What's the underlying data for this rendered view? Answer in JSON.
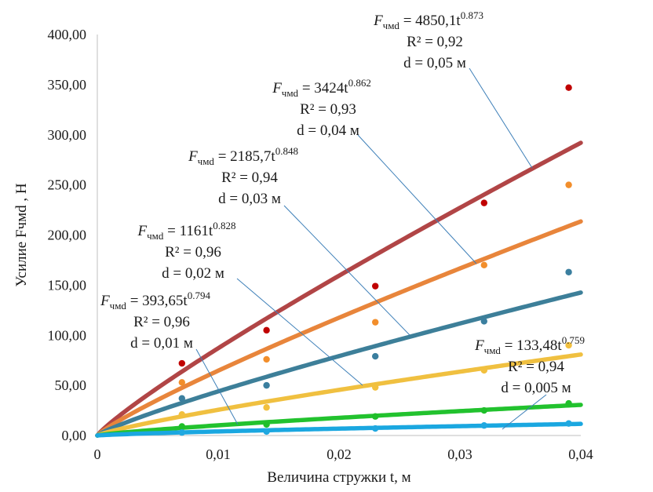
{
  "chart_data": {
    "type": "scatter",
    "xlabel": "Величина стружки t, м",
    "ylabel": "Усилие Fчмd , Н",
    "xlim": [
      0,
      0.04
    ],
    "ylim": [
      0,
      400
    ],
    "x_ticks": [
      "0",
      "0,01",
      "0,02",
      "0,03",
      "0,04"
    ],
    "y_ticks": [
      "0,00",
      "50,00",
      "100,00",
      "150,00",
      "200,00",
      "250,00",
      "300,00",
      "350,00",
      "400,00"
    ],
    "grid": {
      "vertical": false,
      "horizontal": false
    },
    "x_points": [
      0.007,
      0.014,
      0.023,
      0.032,
      0.039
    ],
    "series": [
      {
        "color": "#b14546",
        "point_color": "#c00000",
        "fit": {
          "a": 4850.1,
          "b": 0.873
        },
        "points": [
          72,
          105,
          149,
          232,
          347
        ],
        "annotation": {
          "lead": "F",
          "sub": "чмd",
          "coef": " = 4850,1t",
          "exp": "0.873",
          "r2": "R² = 0,92",
          "d": "d = 0,05 м"
        }
      },
      {
        "color": "#e8853b",
        "point_color": "#f28e2b",
        "fit": {
          "a": 3424,
          "b": 0.862
        },
        "points": [
          53,
          76,
          113,
          170,
          250
        ],
        "annotation": {
          "lead": "F",
          "sub": "чмd",
          "coef": " = 3424t",
          "exp": "0.862",
          "r2": "R² = 0,93",
          "d": "d = 0,04 м"
        }
      },
      {
        "color": "#3d7f99",
        "point_color": "#3b7f9f",
        "fit": {
          "a": 2185.7,
          "b": 0.848
        },
        "points": [
          37,
          50,
          79,
          114,
          163
        ],
        "annotation": {
          "lead": "F",
          "sub": "чмd",
          "coef": " = 2185,7t",
          "exp": "0.848",
          "r2": "R² = 0,94",
          "d": "d = 0,03 м"
        }
      },
      {
        "color": "#f0c040",
        "point_color": "#f2c03e",
        "fit": {
          "a": 1161,
          "b": 0.828
        },
        "points": [
          21,
          28,
          48,
          65,
          90
        ],
        "annotation": {
          "lead": "F",
          "sub": "чмd",
          "coef": " = 1161t",
          "exp": "0.828",
          "r2": "R² = 0,96",
          "d": "d = 0,02 м"
        }
      },
      {
        "color": "#22c22e",
        "point_color": "#1fbf2a",
        "fit": {
          "a": 393.65,
          "b": 0.794
        },
        "points": [
          9,
          11,
          19,
          25,
          32
        ],
        "annotation": {
          "lead": "F",
          "sub": "чмd",
          "coef": " = 393,65t",
          "exp": "0.794",
          "r2": "R² = 0,96",
          "d": "d = 0,01 м"
        }
      },
      {
        "color": "#1aa7e0",
        "point_color": "#20a8e0",
        "fit": {
          "a": 133.48,
          "b": 0.759
        },
        "points": [
          3,
          4,
          7,
          10,
          12
        ],
        "annotation": {
          "lead": "F",
          "sub": "чмd",
          "coef": " = 133,48t",
          "exp": "0.759",
          "r2": "R² = 0,94",
          "d": "d = 0,005 м"
        }
      }
    ]
  }
}
